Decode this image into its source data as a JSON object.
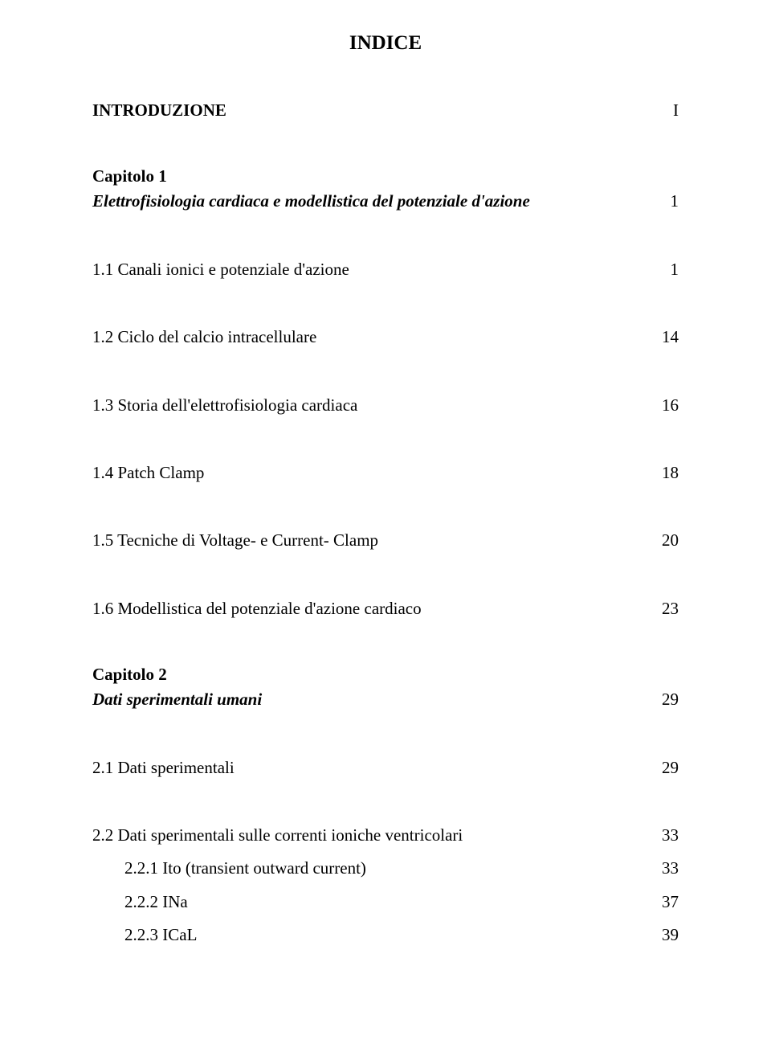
{
  "doc_title": "INDICE",
  "font_family": "Times New Roman",
  "title_fontsize_pt": 19,
  "body_fontsize_pt": 16,
  "colors": {
    "text": "#000000",
    "background": "#ffffff"
  },
  "entries": [
    {
      "kind": "top",
      "label": "INTRODUZIONE",
      "page": "I",
      "bold": true,
      "italic": false
    },
    {
      "kind": "chapter-heading",
      "label": "Capitolo 1"
    },
    {
      "kind": "chapter-title",
      "label": "Elettrofisiologia cardiaca e modellistica del potenziale d'azione",
      "page": "1",
      "bold": true,
      "italic": true
    },
    {
      "kind": "section",
      "label": "1.1 Canali ionici e potenziale d'azione",
      "page": "1"
    },
    {
      "kind": "section",
      "label": "1.2 Ciclo del calcio intracellulare",
      "page": "14"
    },
    {
      "kind": "section",
      "label": "1.3 Storia dell'elettrofisiologia cardiaca",
      "page": "16"
    },
    {
      "kind": "section",
      "label": "1.4 Patch Clamp",
      "page": "18"
    },
    {
      "kind": "section",
      "label": "1.5 Tecniche di Voltage- e Current- Clamp",
      "page": "20"
    },
    {
      "kind": "section",
      "label": "1.6 Modellistica del potenziale d'azione cardiaco",
      "page": "23"
    },
    {
      "kind": "chapter-heading",
      "label": "Capitolo 2"
    },
    {
      "kind": "chapter-title",
      "label": "Dati sperimentali umani",
      "page": "29",
      "bold": true,
      "italic": true
    },
    {
      "kind": "section",
      "label": "2.1 Dati sperimentali",
      "page": "29"
    },
    {
      "kind": "section-tight",
      "label": "2.2 Dati sperimentali sulle correnti ioniche ventricolari",
      "page": "33"
    },
    {
      "kind": "sub",
      "label": "2.2.1 Ito (transient outward current)",
      "page": "33"
    },
    {
      "kind": "sub",
      "label": "2.2.2 INa",
      "page": "37"
    },
    {
      "kind": "sub",
      "label": "2.2.3 ICaL",
      "page": "39"
    }
  ]
}
